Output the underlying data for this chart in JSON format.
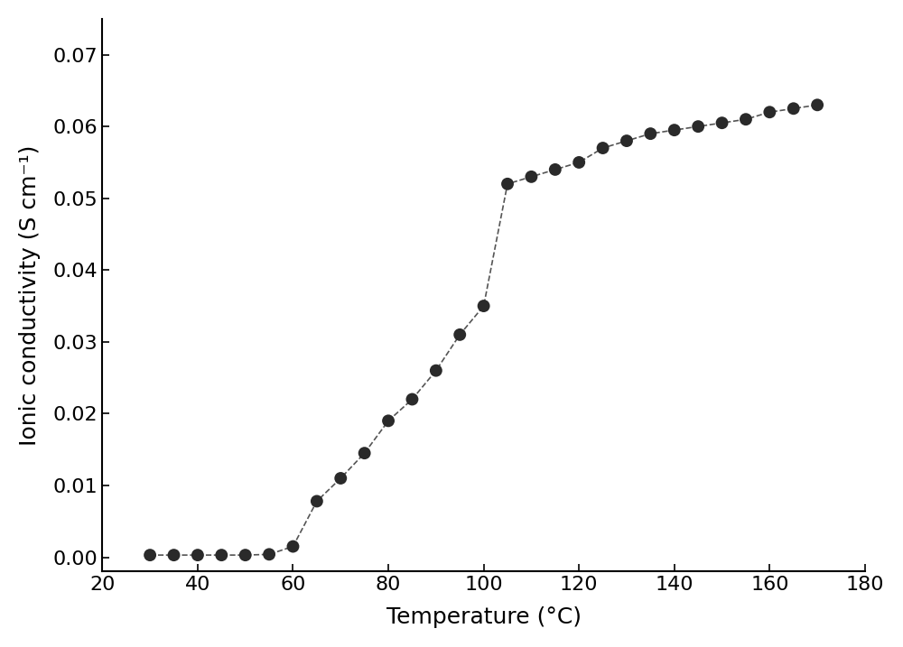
{
  "x": [
    30,
    35,
    40,
    45,
    50,
    55,
    60,
    65,
    70,
    75,
    80,
    85,
    90,
    95,
    100,
    105,
    110,
    115,
    120,
    125,
    130,
    135,
    140,
    145,
    150,
    155,
    160,
    165,
    170
  ],
  "y": [
    0.0003,
    0.0003,
    0.0003,
    0.0003,
    0.0003,
    0.0004,
    0.0015,
    0.0078,
    0.011,
    0.0145,
    0.019,
    0.022,
    0.026,
    0.031,
    0.035,
    0.052,
    0.053,
    0.054,
    0.055,
    0.057,
    0.058,
    0.059,
    0.0595,
    0.06,
    0.0605,
    0.061,
    0.062,
    0.0625,
    0.063
  ],
  "xlabel": "Temperature (°C)",
  "ylabel": "Ionic conductivity (S cm⁻¹)",
  "xlim": [
    20,
    180
  ],
  "ylim": [
    -0.002,
    0.075
  ],
  "xticks": [
    20,
    40,
    60,
    80,
    100,
    120,
    140,
    160,
    180
  ],
  "yticks": [
    0.0,
    0.01,
    0.02,
    0.03,
    0.04,
    0.05,
    0.06,
    0.07
  ],
  "marker_color": "#2a2a2a",
  "line_color": "#555555",
  "marker_size": 10,
  "line_width": 1.2,
  "background_color": "#ffffff",
  "xlabel_fontsize": 18,
  "ylabel_fontsize": 18,
  "tick_fontsize": 16
}
